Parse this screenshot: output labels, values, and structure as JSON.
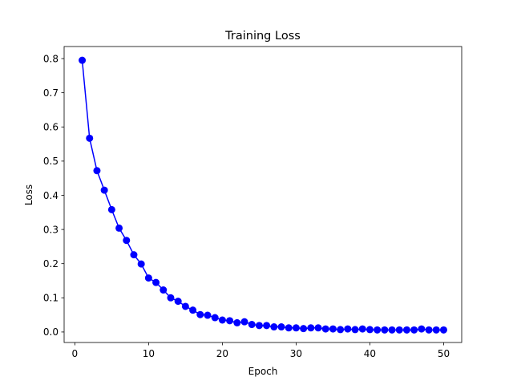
{
  "chart_data": {
    "type": "line",
    "title": "Training Loss",
    "xlabel": "Epoch",
    "ylabel": "Loss",
    "xlim": [
      -1.45,
      52.45
    ],
    "ylim": [
      -0.0307,
      0.8353
    ],
    "x_ticks": [
      0,
      10,
      20,
      30,
      40,
      50
    ],
    "y_ticks": [
      0.0,
      0.1,
      0.2,
      0.3,
      0.4,
      0.5,
      0.6,
      0.7,
      0.8
    ],
    "y_tick_labels": [
      "0.0",
      "0.1",
      "0.2",
      "0.3",
      "0.4",
      "0.5",
      "0.6",
      "0.7",
      "0.8"
    ],
    "grid": false,
    "legend": null,
    "series": [
      {
        "color": "#0000ff",
        "marker": "circle",
        "x": [
          1,
          2,
          3,
          4,
          5,
          6,
          7,
          8,
          9,
          10,
          11,
          12,
          13,
          14,
          15,
          16,
          17,
          18,
          19,
          20,
          21,
          22,
          23,
          24,
          25,
          26,
          27,
          28,
          29,
          30,
          31,
          32,
          33,
          34,
          35,
          36,
          37,
          38,
          39,
          40,
          41,
          42,
          43,
          44,
          45,
          46,
          47,
          48,
          49,
          50
        ],
        "y": [
          0.795,
          0.567,
          0.472,
          0.415,
          0.358,
          0.304,
          0.268,
          0.226,
          0.199,
          0.158,
          0.145,
          0.123,
          0.1,
          0.09,
          0.075,
          0.064,
          0.051,
          0.049,
          0.042,
          0.035,
          0.033,
          0.027,
          0.03,
          0.022,
          0.019,
          0.019,
          0.015,
          0.015,
          0.012,
          0.012,
          0.01,
          0.012,
          0.012,
          0.009,
          0.009,
          0.007,
          0.009,
          0.007,
          0.009,
          0.007,
          0.006,
          0.006,
          0.006,
          0.006,
          0.006,
          0.006,
          0.009,
          0.006,
          0.006,
          0.006
        ]
      }
    ]
  }
}
